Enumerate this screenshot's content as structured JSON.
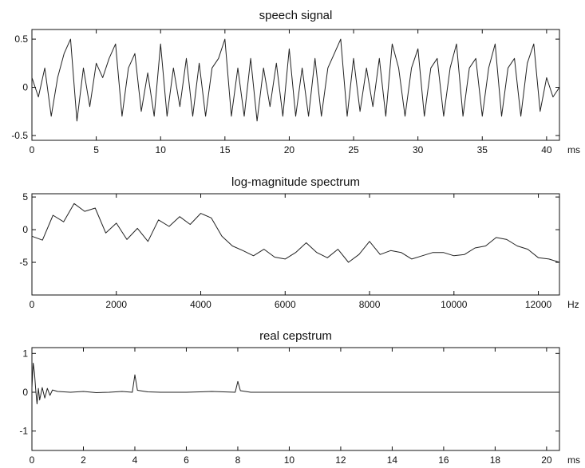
{
  "chart_data": [
    {
      "type": "line",
      "title": "speech signal",
      "xunit": "ms",
      "xlim": [
        0,
        41
      ],
      "ylim": [
        -0.55,
        0.6
      ],
      "xticks": [
        0,
        5,
        10,
        15,
        20,
        25,
        30,
        35,
        40
      ],
      "xtick_labels": [
        "0",
        "5",
        "10",
        "15",
        "20",
        "25",
        "30",
        "35",
        "40"
      ],
      "yticks": [
        -0.5,
        0,
        0.5
      ],
      "ytick_labels": [
        "-0.5",
        "0",
        "0.5"
      ],
      "x": [
        0,
        0.5,
        1.0,
        1.5,
        2.0,
        2.5,
        3.0,
        3.5,
        4.0,
        4.5,
        5.0,
        5.5,
        6.0,
        6.5,
        7.0,
        7.5,
        8.0,
        8.5,
        9.0,
        9.5,
        10.0,
        10.5,
        11.0,
        11.5,
        12.0,
        12.5,
        13.0,
        13.5,
        14.0,
        14.5,
        15.0,
        15.5,
        16.0,
        16.5,
        17.0,
        17.5,
        18.0,
        18.5,
        19.0,
        19.5,
        20.0,
        20.5,
        21.0,
        21.5,
        22.0,
        22.5,
        23.0,
        23.5,
        24.0,
        24.5,
        25.0,
        25.5,
        26.0,
        26.5,
        27.0,
        27.5,
        28.0,
        28.5,
        29.0,
        29.5,
        30.0,
        30.5,
        31.0,
        31.5,
        32.0,
        32.5,
        33.0,
        33.5,
        34.0,
        34.5,
        35.0,
        35.5,
        36.0,
        36.5,
        37.0,
        37.5,
        38.0,
        38.5,
        39.0,
        39.5,
        40.0,
        40.5,
        41.0
      ],
      "y": [
        0.1,
        -0.1,
        0.2,
        -0.3,
        0.1,
        0.35,
        0.5,
        -0.35,
        0.2,
        -0.2,
        0.25,
        0.1,
        0.3,
        0.45,
        -0.3,
        0.2,
        0.35,
        -0.25,
        0.15,
        -0.3,
        0.45,
        -0.3,
        0.2,
        -0.2,
        0.3,
        -0.3,
        0.25,
        -0.3,
        0.2,
        0.3,
        0.5,
        -0.3,
        0.2,
        -0.3,
        0.3,
        -0.35,
        0.2,
        -0.2,
        0.25,
        -0.3,
        0.4,
        -0.3,
        0.2,
        -0.3,
        0.3,
        -0.3,
        0.2,
        0.35,
        0.5,
        -0.3,
        0.3,
        -0.25,
        0.2,
        -0.2,
        0.3,
        -0.3,
        0.45,
        0.2,
        -0.3,
        0.2,
        0.4,
        -0.3,
        0.2,
        0.3,
        -0.3,
        0.2,
        0.45,
        -0.3,
        0.2,
        0.3,
        -0.3,
        0.2,
        0.45,
        -0.3,
        0.2,
        0.3,
        -0.3,
        0.25,
        0.45,
        -0.25,
        0.1,
        -0.1,
        0.0
      ]
    },
    {
      "type": "line",
      "title": "log-magnitude spectrum",
      "xunit": "Hz",
      "xlim": [
        0,
        12500
      ],
      "ylim": [
        -10,
        5.5
      ],
      "xticks": [
        0,
        2000,
        4000,
        6000,
        8000,
        10000,
        12000
      ],
      "xtick_labels": [
        "0",
        "2000",
        "4000",
        "6000",
        "8000",
        "10000",
        "12000"
      ],
      "yticks": [
        -5,
        0,
        5
      ],
      "ytick_labels": [
        "-5",
        "0",
        "5"
      ],
      "x": [
        0,
        250,
        500,
        750,
        1000,
        1250,
        1500,
        1750,
        2000,
        2250,
        2500,
        2750,
        3000,
        3250,
        3500,
        3750,
        4000,
        4250,
        4500,
        4750,
        5000,
        5250,
        5500,
        5750,
        6000,
        6250,
        6500,
        6750,
        7000,
        7250,
        7500,
        7750,
        8000,
        8250,
        8500,
        8750,
        9000,
        9250,
        9500,
        9750,
        10000,
        10250,
        10500,
        10750,
        11000,
        11250,
        11500,
        11750,
        12000,
        12250,
        12500
      ],
      "y": [
        -1,
        -1.6,
        2.2,
        1.2,
        4.0,
        2.8,
        3.3,
        -0.5,
        1.0,
        -1.5,
        0.2,
        -1.8,
        1.5,
        0.5,
        2.0,
        0.8,
        2.5,
        1.8,
        -1.0,
        -2.5,
        -3.2,
        -4.0,
        -3.0,
        -4.2,
        -4.5,
        -3.5,
        -2.0,
        -3.5,
        -4.3,
        -3.0,
        -5.0,
        -3.8,
        -1.8,
        -3.8,
        -3.2,
        -3.5,
        -4.5,
        -4.0,
        -3.5,
        -3.5,
        -4.0,
        -3.8,
        -2.8,
        -2.5,
        -1.2,
        -1.5,
        -2.5,
        -3.0,
        -4.3,
        -4.5,
        -5.0
      ]
    },
    {
      "type": "line",
      "title": "real cepstrum",
      "xunit": "ms",
      "xlim": [
        0,
        20.5
      ],
      "ylim": [
        -1.5,
        1.15
      ],
      "xticks": [
        0,
        2,
        4,
        6,
        8,
        10,
        12,
        14,
        16,
        18,
        20
      ],
      "xtick_labels": [
        "0",
        "2",
        "4",
        "6",
        "8",
        "10",
        "12",
        "14",
        "16",
        "18",
        "20"
      ],
      "yticks": [
        -1,
        0,
        1
      ],
      "ytick_labels": [
        "-1",
        "0",
        "1"
      ],
      "x": [
        0,
        0.05,
        0.1,
        0.15,
        0.2,
        0.25,
        0.3,
        0.4,
        0.5,
        0.6,
        0.7,
        0.8,
        1.0,
        1.5,
        2.0,
        2.5,
        3.0,
        3.5,
        3.9,
        4.0,
        4.1,
        4.5,
        5.0,
        6.0,
        7.0,
        7.9,
        8.0,
        8.1,
        8.5,
        10.0,
        12.0,
        14.0,
        16.0,
        18.0,
        20.0,
        20.5
      ],
      "y": [
        0.1,
        0.75,
        0.5,
        0.05,
        -0.3,
        0.1,
        -0.2,
        0.12,
        -0.15,
        0.1,
        -0.08,
        0.06,
        0.02,
        0.0,
        0.02,
        -0.01,
        0.0,
        0.02,
        0.0,
        0.45,
        0.05,
        0.01,
        0.0,
        0.0,
        0.02,
        0.0,
        0.28,
        0.04,
        0.0,
        0.0,
        0.0,
        0.0,
        0.0,
        0.0,
        0.0,
        0.0
      ]
    }
  ]
}
